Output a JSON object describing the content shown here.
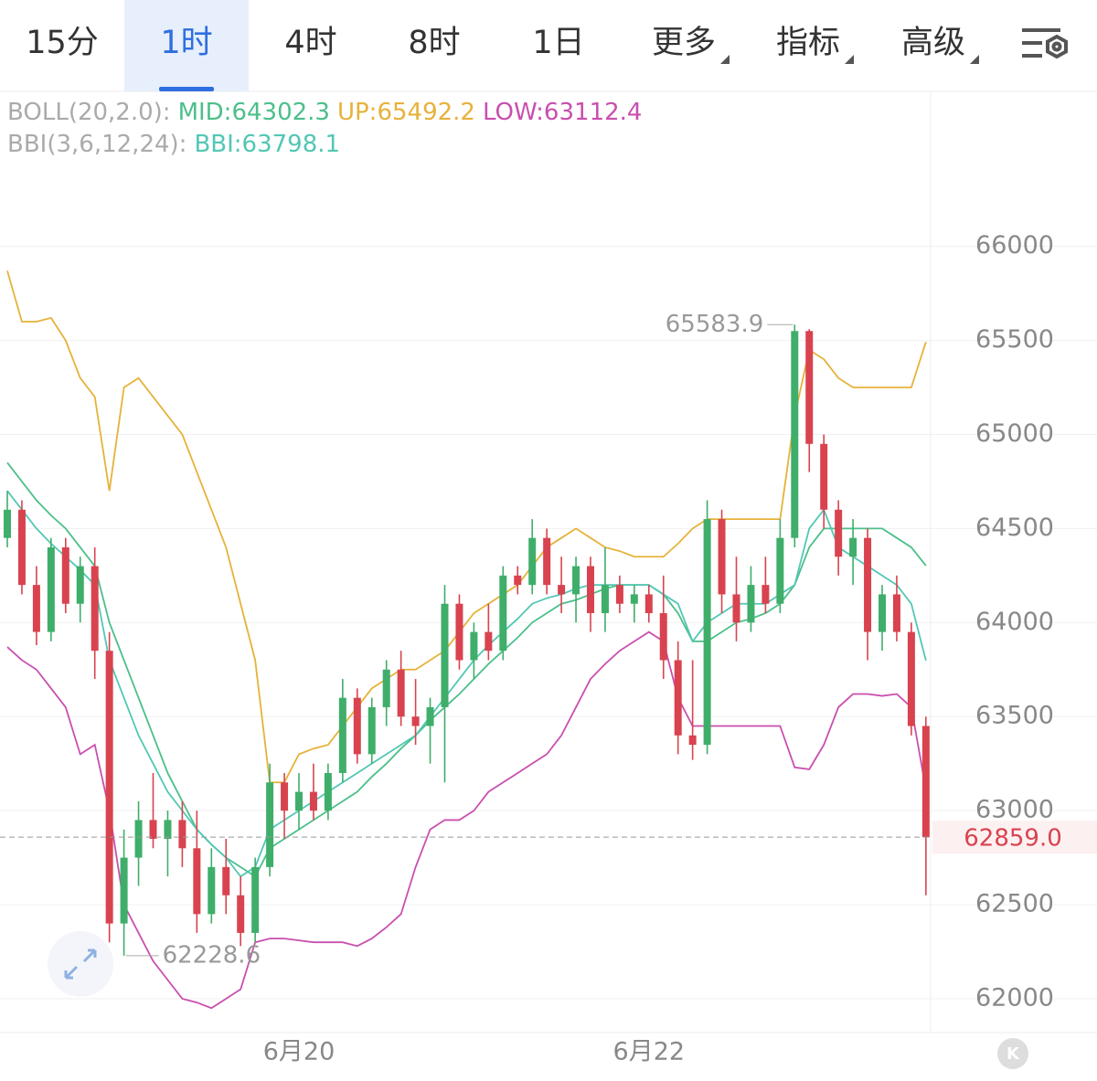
{
  "tabs": [
    "15分",
    "1时",
    "4时",
    "8时",
    "1日",
    "更多",
    "指标",
    "高级"
  ],
  "active_tab_index": 1,
  "bottom_button": "K",
  "chart_data": {
    "type": "candlestick",
    "categories": [
      null,
      null,
      null,
      null,
      null,
      null,
      null,
      null,
      null,
      null,
      null,
      null,
      null,
      null,
      null,
      null,
      null,
      null,
      null,
      null,
      "6月20",
      null,
      null,
      null,
      null,
      null,
      null,
      null,
      null,
      null,
      null,
      null,
      null,
      null,
      null,
      null,
      null,
      null,
      null,
      null,
      null,
      null,
      null,
      null,
      "6月22",
      null,
      null,
      null,
      null,
      null,
      null,
      null,
      null,
      null,
      null,
      null,
      null,
      null,
      null,
      null,
      null,
      null,
      null,
      null
    ],
    "open": [
      64450,
      64600,
      64200,
      63950,
      64400,
      64100,
      64300,
      63850,
      62400,
      62750,
      62950,
      62850,
      62950,
      62800,
      62450,
      62700,
      62550,
      62350,
      62700,
      63150,
      63000,
      63100,
      63000,
      63200,
      63600,
      63300,
      63550,
      63750,
      63500,
      63450,
      63550,
      64100,
      63800,
      63950,
      63850,
      64250,
      64200,
      64450,
      64200,
      64150,
      64300,
      64050,
      64200,
      64100,
      64150,
      64050,
      63800,
      63400,
      63350,
      64550,
      64150,
      64000,
      64200,
      64100,
      64450,
      65550,
      64950,
      64600,
      64350,
      64450,
      63950,
      64150,
      63950,
      63450
    ],
    "high": [
      64700,
      64650,
      64300,
      64450,
      64450,
      64350,
      64400,
      63950,
      62900,
      63050,
      63200,
      63000,
      63050,
      63000,
      62800,
      62850,
      62650,
      62750,
      63250,
      63200,
      63200,
      63250,
      63250,
      63700,
      63650,
      63600,
      63800,
      63850,
      63700,
      63600,
      64200,
      64150,
      64000,
      64100,
      64300,
      64300,
      64550,
      64500,
      64350,
      64350,
      64350,
      64400,
      64250,
      64200,
      64200,
      64250,
      63900,
      63800,
      64650,
      64600,
      64350,
      64300,
      64350,
      64550,
      65583.9,
      65560,
      65000,
      64650,
      64550,
      64500,
      64200,
      64250,
      64000,
      63500
    ],
    "low": [
      64400,
      64150,
      63880,
      63900,
      64050,
      64000,
      63700,
      62300,
      62228.6,
      62600,
      62800,
      62650,
      62700,
      62350,
      62400,
      62450,
      62280,
      62300,
      62650,
      62850,
      62900,
      62950,
      62950,
      63150,
      63250,
      63250,
      63450,
      63450,
      63350,
      63250,
      63150,
      63750,
      63700,
      63800,
      63800,
      64150,
      64150,
      64150,
      64050,
      64000,
      63950,
      63950,
      64050,
      64000,
      64000,
      63700,
      63300,
      63270,
      63300,
      64050,
      63900,
      63950,
      64050,
      64050,
      64400,
      64800,
      64500,
      64250,
      64200,
      63800,
      63850,
      63900,
      63400,
      62550
    ],
    "close": [
      64600,
      64200,
      63950,
      64400,
      64100,
      64300,
      63850,
      62400,
      62750,
      62950,
      62850,
      62950,
      62800,
      62450,
      62700,
      62550,
      62350,
      62700,
      63150,
      63000,
      63100,
      63000,
      63200,
      63600,
      63300,
      63550,
      63750,
      63500,
      63450,
      63550,
      64100,
      63800,
      63950,
      63850,
      64250,
      64200,
      64450,
      64200,
      64150,
      64300,
      64050,
      64200,
      64100,
      64150,
      64050,
      63800,
      63400,
      63350,
      64550,
      64150,
      64000,
      64200,
      64100,
      64450,
      65550,
      64950,
      64600,
      64350,
      64450,
      63950,
      64150,
      63950,
      63450,
      62859
    ],
    "up_color": "#3fae6a",
    "down_color": "#d8434f",
    "overlays": [
      {
        "name": "BOLL(20,2.0):",
        "series": [
          {
            "name": "MID:64302.3",
            "color": "#4cbf8a",
            "values": [
              64850,
              64750,
              64650,
              64570,
              64500,
              64400,
              64300,
              64000,
              63800,
              63600,
              63400,
              63200,
              63050,
              62900,
              62820,
              62750,
              62700,
              62650,
              62800,
              62850,
              62900,
              62950,
              63000,
              63050,
              63100,
              63180,
              63250,
              63330,
              63400,
              63480,
              63550,
              63620,
              63700,
              63780,
              63850,
              63920,
              64000,
              64050,
              64100,
              64120,
              64150,
              64180,
              64200,
              64200,
              64200,
              64150,
              64050,
              63900,
              63900,
              63950,
              64000,
              64020,
              64050,
              64100,
              64200,
              64400,
              64500,
              64500,
              64500,
              64500,
              64500,
              64450,
              64400,
              64302.3
            ]
          },
          {
            "name": "UP:65492.2",
            "color": "#e6b23a",
            "values": [
              65870,
              65600,
              65600,
              65620,
              65500,
              65300,
              65200,
              64700,
              65250,
              65300,
              65200,
              65100,
              65000,
              64800,
              64600,
              64400,
              64100,
              63800,
              63150,
              63150,
              63300,
              63330,
              63350,
              63450,
              63550,
              63650,
              63700,
              63750,
              63750,
              63800,
              63850,
              63950,
              64050,
              64100,
              64150,
              64200,
              64300,
              64400,
              64450,
              64500,
              64450,
              64400,
              64380,
              64350,
              64350,
              64350,
              64420,
              64500,
              64550,
              64550,
              64550,
              64550,
              64550,
              64550,
              65100,
              65450,
              65400,
              65300,
              65250,
              65250,
              65250,
              65250,
              65250,
              65492.2
            ]
          },
          {
            "name": "LOW:63112.4",
            "color": "#c94fae",
            "values": [
              63870,
              63800,
              63750,
              63650,
              63550,
              63300,
              63350,
              63000,
              62500,
              62350,
              62200,
              62100,
              62000,
              61980,
              61950,
              62000,
              62050,
              62300,
              62320,
              62320,
              62310,
              62300,
              62300,
              62300,
              62280,
              62320,
              62380,
              62450,
              62700,
              62900,
              62950,
              62950,
              63000,
              63100,
              63150,
              63200,
              63250,
              63300,
              63400,
              63550,
              63700,
              63780,
              63850,
              63900,
              63950,
              63900,
              63600,
              63450,
              63450,
              63450,
              63450,
              63450,
              63450,
              63450,
              63230,
              63220,
              63350,
              63550,
              63620,
              63620,
              63610,
              63620,
              63550,
              63112.4
            ]
          }
        ]
      },
      {
        "name": "BBI(3,6,12,24):",
        "series": [
          {
            "name": "BBI:63798.1",
            "color": "#52c7b4",
            "values": [
              64700,
              64600,
              64500,
              64420,
              64350,
              64280,
              64200,
              63800,
              63600,
              63400,
              63250,
              63100,
              63000,
              62900,
              62820,
              62750,
              62650,
              62700,
              62900,
              62950,
              63000,
              63050,
              63100,
              63150,
              63200,
              63250,
              63300,
              63350,
              63400,
              63500,
              63600,
              63700,
              63800,
              63880,
              63950,
              64020,
              64100,
              64130,
              64150,
              64180,
              64200,
              64200,
              64200,
              64200,
              64200,
              64150,
              64100,
              63900,
              64000,
              64050,
              64100,
              64100,
              64100,
              64150,
              64200,
              64500,
              64600,
              64400,
              64350,
              64300,
              64250,
              64200,
              64100,
              63798.1
            ]
          }
        ]
      }
    ],
    "ylim": [
      61820,
      66800
    ],
    "yticks": [
      62000,
      62500,
      63000,
      63500,
      64000,
      64500,
      65000,
      65500,
      66000
    ],
    "grid": true,
    "last_price": {
      "value": 62859,
      "label": "62859.0"
    }
  }
}
